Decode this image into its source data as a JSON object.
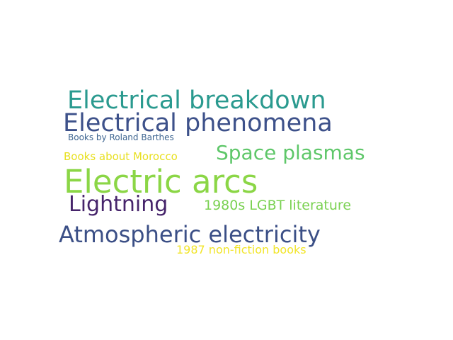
{
  "words": [
    {
      "text": "Electrical breakdown",
      "color": "#2a9a8f"
    },
    {
      "text": "Electrical phenomena",
      "color": "#3d518a"
    },
    {
      "text": "Books by Roland Barthes",
      "color": "#3f6691"
    },
    {
      "text": "Space plasmas",
      "color": "#5ec769"
    },
    {
      "text": "Books about Morocco",
      "color": "#e8e020"
    },
    {
      "text": "Electric arcs",
      "color": "#8bd646"
    },
    {
      "text": "Lightning",
      "color": "#46246b"
    },
    {
      "text": "1980s LGBT literature",
      "color": "#7ad151"
    },
    {
      "text": "Atmospheric electricity",
      "color": "#3b4f86"
    },
    {
      "text": "1987 non-fiction books",
      "color": "#f2e52a"
    }
  ]
}
